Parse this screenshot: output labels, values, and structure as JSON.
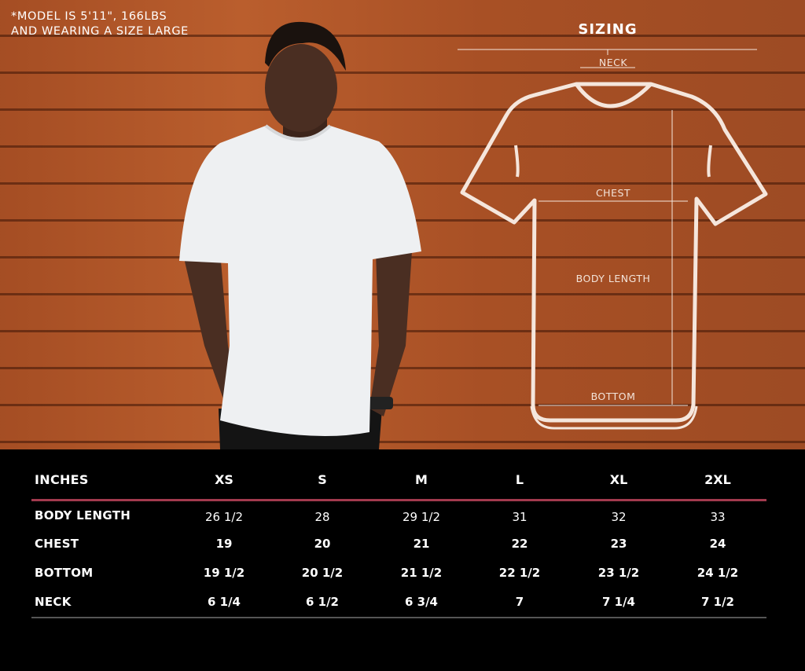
{
  "note": {
    "line1": "*MODEL IS 5'11\", 166LBS",
    "line2": "AND WEARING A SIZE LARGE"
  },
  "diagram": {
    "title": "SIZING",
    "neck": "NECK",
    "chest": "CHEST",
    "body_length": "BODY LENGTH",
    "bottom": "BOTTOM",
    "outline_color": "#f5e6dc"
  },
  "table": {
    "unit_label": "INCHES",
    "sizes": [
      "XS",
      "S",
      "M",
      "L",
      "XL",
      "2XL"
    ],
    "rows": [
      {
        "label": "BODY LENGTH",
        "values": [
          "26 1/2",
          "28",
          "29 1/2",
          "31",
          "32",
          "33"
        ]
      },
      {
        "label": "CHEST",
        "values": [
          "19",
          "20",
          "21",
          "22",
          "23",
          "24"
        ]
      },
      {
        "label": "BOTTOM",
        "values": [
          "19 1/2",
          "20 1/2",
          "21 1/2",
          "22 1/2",
          "23 1/2",
          "24 1/2"
        ]
      },
      {
        "label": "NECK",
        "values": [
          "6 1/4",
          "6 1/2",
          "6 3/4",
          "7",
          "7 1/4",
          "7 1/2"
        ]
      }
    ],
    "accent_line_color": "#a23a4e"
  }
}
